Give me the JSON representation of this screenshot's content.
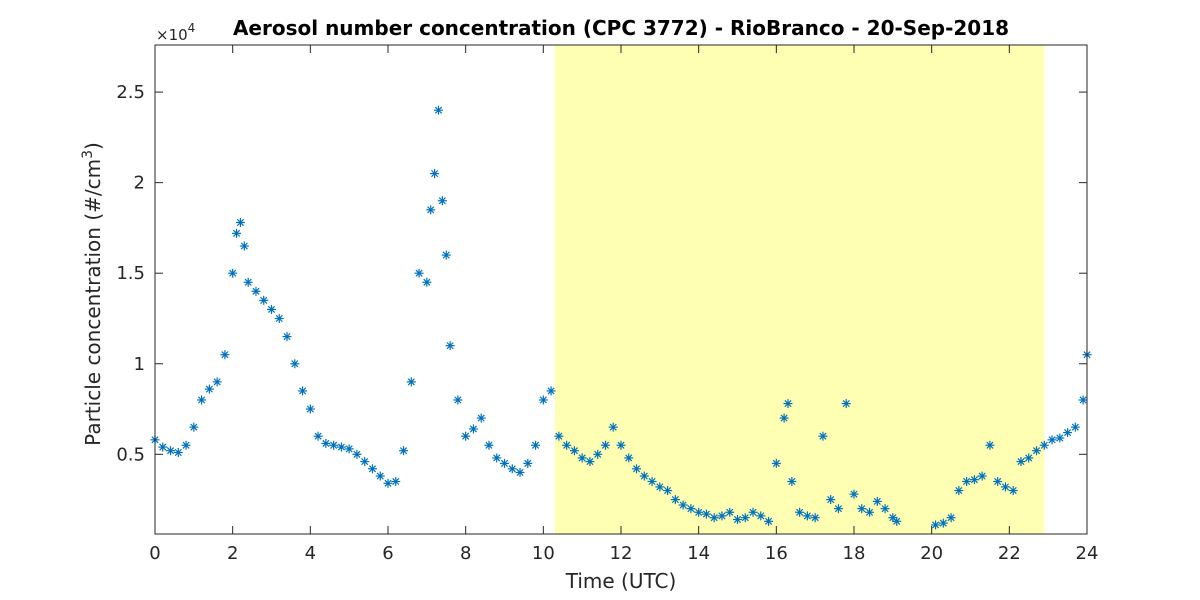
{
  "chart_data": {
    "type": "scatter",
    "title": "Aerosol number concentration (CPC 3772) - RioBranco - 20-Sep-2018",
    "xlabel": "Time (UTC)",
    "ylabel_main": "Particle concentration (#/cm",
    "ylabel_sup": "3",
    "ylabel_tail": ")",
    "y_exponent_text": "×10",
    "y_exponent_power": "4",
    "xlim": [
      0,
      24
    ],
    "ylim": [
      600,
      27600
    ],
    "x_ticks": [
      0,
      2,
      4,
      6,
      8,
      10,
      12,
      14,
      16,
      18,
      20,
      22,
      24
    ],
    "y_ticks": [
      5000,
      10000,
      15000,
      20000,
      25000
    ],
    "y_tick_labels": [
      "0.5",
      "1",
      "1.5",
      "2",
      "2.5"
    ],
    "shaded_region": {
      "x_start": 10.3,
      "x_end": 22.9,
      "color": "#ffffb3"
    },
    "marker": "asterisk",
    "series_color": "#0072bd",
    "series": [
      {
        "x": [
          0.0,
          0.2,
          0.4,
          0.6,
          0.8,
          1.0,
          1.2,
          1.4,
          1.6,
          1.8,
          2.0,
          2.1,
          2.2,
          2.3,
          2.4,
          2.6,
          2.8,
          3.0,
          3.2,
          3.4,
          3.6,
          3.8,
          4.0,
          4.2,
          4.4,
          4.6,
          4.8,
          5.0,
          5.2,
          5.4,
          5.6,
          5.8,
          6.0,
          6.2,
          6.4,
          6.6,
          6.8,
          7.0,
          7.1,
          7.2,
          7.3,
          7.4,
          7.5,
          7.6,
          7.8,
          8.0,
          8.2,
          8.4,
          8.6,
          8.8,
          9.0,
          9.2,
          9.4,
          9.6,
          9.8,
          10.0,
          10.2,
          10.4,
          10.6,
          10.8,
          11.0,
          11.2,
          11.4,
          11.6,
          11.8,
          12.0,
          12.2,
          12.4,
          12.6,
          12.8,
          13.0,
          13.2,
          13.4,
          13.6,
          13.8,
          14.0,
          14.2,
          14.4,
          14.6,
          14.8,
          15.0,
          15.2,
          15.4,
          15.6,
          15.8,
          16.0,
          16.2,
          16.3,
          16.4,
          16.6,
          16.8,
          17.0,
          17.2,
          17.4,
          17.6,
          17.8,
          18.0,
          18.2,
          18.4,
          18.6,
          18.8,
          19.0,
          19.1,
          20.1,
          20.3,
          20.5,
          20.7,
          20.9,
          21.1,
          21.3,
          21.5,
          21.7,
          21.9,
          22.1,
          22.3,
          22.5,
          22.7,
          22.9,
          23.1,
          23.3,
          23.5,
          23.7,
          23.9,
          24.0
        ],
        "y": [
          5800,
          5400,
          5200,
          5100,
          5500,
          6500,
          8000,
          8600,
          9000,
          10500,
          15000,
          17200,
          17800,
          16500,
          14500,
          14000,
          13500,
          13000,
          12500,
          11500,
          10000,
          8500,
          7500,
          6000,
          5600,
          5500,
          5400,
          5300,
          5000,
          4600,
          4200,
          3800,
          3400,
          3500,
          5200,
          9000,
          15000,
          14500,
          18500,
          20500,
          24000,
          19000,
          16000,
          11000,
          8000,
          6000,
          6400,
          7000,
          5500,
          4800,
          4500,
          4200,
          4000,
          4500,
          5500,
          8000,
          8500,
          6000,
          5500,
          5200,
          4800,
          4600,
          5000,
          5500,
          6500,
          5500,
          4800,
          4200,
          3800,
          3500,
          3200,
          3000,
          2500,
          2200,
          2000,
          1800,
          1700,
          1500,
          1600,
          1800,
          1400,
          1500,
          1800,
          1600,
          1300,
          4500,
          7000,
          7800,
          3500,
          1800,
          1600,
          1500,
          6000,
          2500,
          2000,
          7800,
          2800,
          2000,
          1800,
          2400,
          2000,
          1500,
          1300,
          1100,
          1200,
          1500,
          3000,
          3500,
          3600,
          3800,
          5500,
          3500,
          3200,
          3000,
          4600,
          4800,
          5200,
          5500,
          5800,
          5900,
          6200,
          6500,
          8000,
          10500
        ]
      }
    ]
  }
}
